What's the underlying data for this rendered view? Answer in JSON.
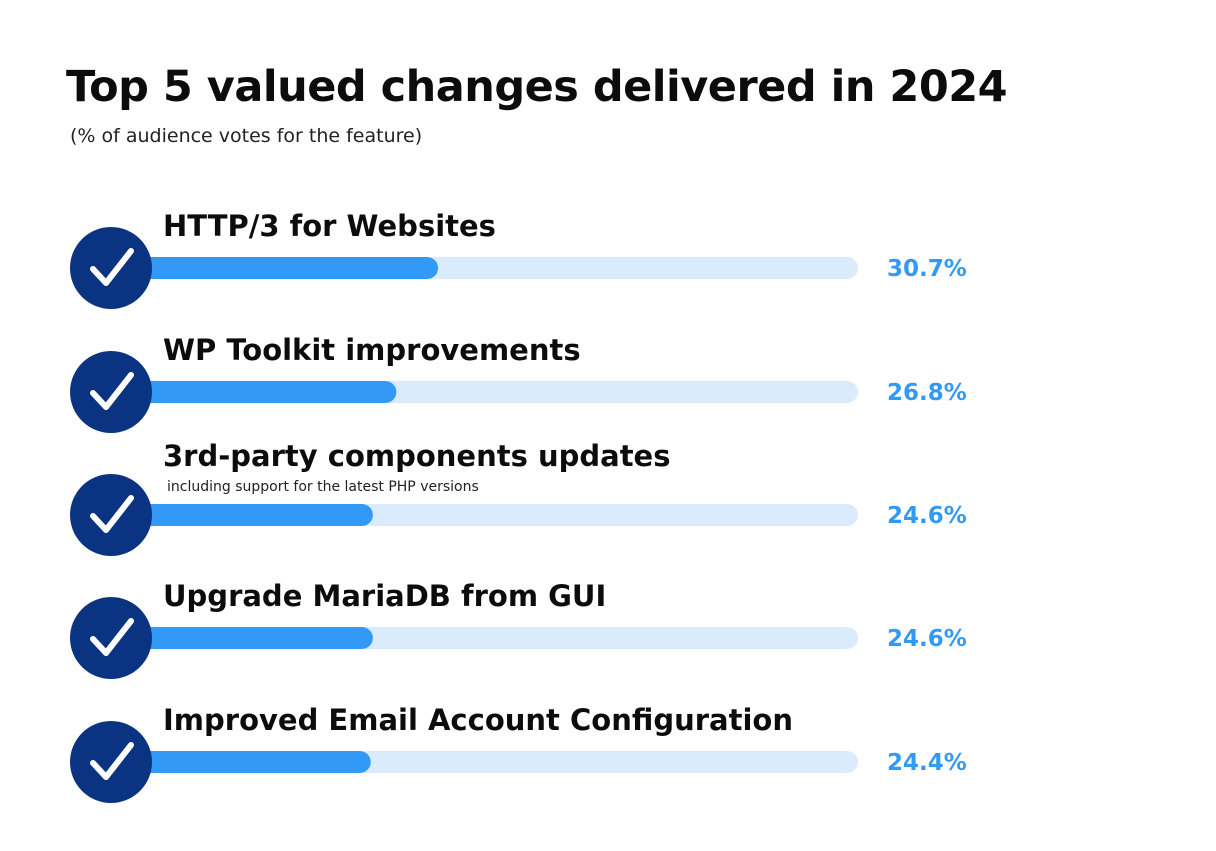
{
  "colors": {
    "circle": "#0a3482",
    "check": "#ffffff",
    "bar_fill": "#3399f7",
    "bar_track": "#d9ebfd",
    "value_text": "#3399f7"
  },
  "icon": "check-icon",
  "chart_data": {
    "type": "bar",
    "orientation": "horizontal",
    "title": "Top 5 valued changes delivered in 2024",
    "subtitle": "(% of audience votes for the feature)",
    "categories": [
      "HTTP/3 for Websites",
      "WP Toolkit improvements",
      "3rd-party components updates",
      "Upgrade MariaDB from GUI",
      "Improved Email Account Configuration"
    ],
    "notes": [
      "",
      "",
      "including support for the latest PHP versions",
      "",
      ""
    ],
    "values": [
      30.7,
      26.8,
      24.6,
      24.6,
      24.4
    ],
    "value_labels": [
      "30.7%",
      "26.8%",
      "24.6%",
      "24.6%",
      "24.4%"
    ],
    "unit": "%",
    "xlim": [
      0,
      70
    ],
    "grid": false,
    "legend": "none"
  }
}
